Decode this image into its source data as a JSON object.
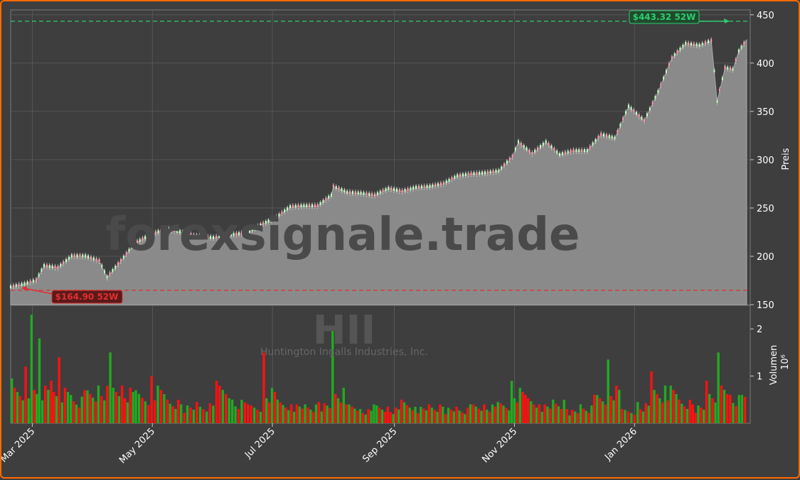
{
  "chart_data": {
    "type": "candlestick",
    "ticker": "HII",
    "company": "Huntington Ingalls Industries, Inc.",
    "watermark": "forexsignale.trade",
    "ylabel": "Preis",
    "volume_label": "Volumen",
    "volume_multiplier": "10⁶",
    "ylim": [
      150,
      455
    ],
    "vol_ylim": [
      0,
      2.5
    ],
    "yticks": [
      "150",
      "200",
      "250",
      "300",
      "350",
      "400",
      "450"
    ],
    "vol_yticks": [
      "1",
      "2"
    ],
    "x_start": "2025-02-18",
    "x_end": "2026-02-27",
    "xticks": [
      {
        "date": "2025-03-01",
        "label": "Mar 2025"
      },
      {
        "date": "2025-05-01",
        "label": "May 2025"
      },
      {
        "date": "2025-07-01",
        "label": "Jul 2025"
      },
      {
        "date": "2025-09-01",
        "label": "Sep 2025"
      },
      {
        "date": "2025-11-01",
        "label": "Nov 2025"
      },
      {
        "date": "2026-01-01",
        "label": "Jan 2026"
      }
    ],
    "high_52w": {
      "value": 443.32,
      "label": "$443.32 52W",
      "color": "#2ecc71"
    },
    "low_52w": {
      "value": 164.9,
      "label": "$164.90 52W",
      "color": "#e03030"
    },
    "colors": {
      "up": "#22aa22",
      "down": "#ff1111",
      "area": "#8a8a8a",
      "grid": "#5a5a5a"
    },
    "price_series": [
      [
        "2025-02-18",
        168
      ],
      [
        "2025-02-25",
        171
      ],
      [
        "2025-03-03",
        175
      ],
      [
        "2025-03-07",
        190
      ],
      [
        "2025-03-14",
        188
      ],
      [
        "2025-03-21",
        200
      ],
      [
        "2025-03-28",
        200
      ],
      [
        "2025-04-04",
        195
      ],
      [
        "2025-04-08",
        178
      ],
      [
        "2025-04-15",
        195
      ],
      [
        "2025-04-22",
        213
      ],
      [
        "2025-04-30",
        222
      ],
      [
        "2025-05-08",
        228
      ],
      [
        "2025-05-15",
        225
      ],
      [
        "2025-05-22",
        221
      ],
      [
        "2025-06-01",
        219
      ],
      [
        "2025-06-10",
        222
      ],
      [
        "2025-06-18",
        224
      ],
      [
        "2025-06-25",
        232
      ],
      [
        "2025-07-03",
        240
      ],
      [
        "2025-07-10",
        251
      ],
      [
        "2025-07-17",
        252
      ],
      [
        "2025-07-24",
        252
      ],
      [
        "2025-07-31",
        263
      ],
      [
        "2025-08-01",
        272
      ],
      [
        "2025-08-08",
        266
      ],
      [
        "2025-08-15",
        265
      ],
      [
        "2025-08-22",
        263
      ],
      [
        "2025-08-29",
        270
      ],
      [
        "2025-09-05",
        267
      ],
      [
        "2025-09-12",
        271
      ],
      [
        "2025-09-19",
        272
      ],
      [
        "2025-09-26",
        275
      ],
      [
        "2025-10-03",
        283
      ],
      [
        "2025-10-10",
        285
      ],
      [
        "2025-10-17",
        286
      ],
      [
        "2025-10-24",
        288
      ],
      [
        "2025-10-31",
        303
      ],
      [
        "2025-11-03",
        318
      ],
      [
        "2025-11-10",
        306
      ],
      [
        "2025-11-17",
        318
      ],
      [
        "2025-11-24",
        305
      ],
      [
        "2025-12-01",
        309
      ],
      [
        "2025-12-08",
        309
      ],
      [
        "2025-12-15",
        326
      ],
      [
        "2025-12-22",
        322
      ],
      [
        "2025-12-29",
        355
      ],
      [
        "2026-01-06",
        340
      ],
      [
        "2026-01-13",
        370
      ],
      [
        "2026-01-20",
        405
      ],
      [
        "2026-01-27",
        420
      ],
      [
        "2026-02-03",
        418
      ],
      [
        "2026-02-09",
        423
      ],
      [
        "2026-02-12",
        360
      ],
      [
        "2026-02-16",
        395
      ],
      [
        "2026-02-20",
        393
      ],
      [
        "2026-02-23",
        412
      ],
      [
        "2026-02-27",
        424
      ]
    ],
    "volume_series": [
      [
        "2025-02-18",
        0.95,
        "up"
      ],
      [
        "2025-02-25",
        1.2,
        "down"
      ],
      [
        "2025-02-28",
        2.3,
        "up"
      ],
      [
        "2025-03-04",
        1.8,
        "up"
      ],
      [
        "2025-03-10",
        0.9,
        "down"
      ],
      [
        "2025-03-14",
        1.4,
        "down"
      ],
      [
        "2025-03-20",
        0.6,
        "up"
      ],
      [
        "2025-03-27",
        0.7,
        "down"
      ],
      [
        "2025-04-03",
        0.8,
        "up"
      ],
      [
        "2025-04-09",
        1.5,
        "up"
      ],
      [
        "2025-04-15",
        0.8,
        "down"
      ],
      [
        "2025-04-22",
        0.7,
        "up"
      ],
      [
        "2025-04-30",
        1.0,
        "down"
      ],
      [
        "2025-05-08",
        0.5,
        "down"
      ],
      [
        "2025-05-15",
        0.4,
        "up"
      ],
      [
        "2025-05-23",
        0.45,
        "down"
      ],
      [
        "2025-06-02",
        0.9,
        "down"
      ],
      [
        "2025-06-10",
        0.5,
        "up"
      ],
      [
        "2025-06-18",
        0.4,
        "down"
      ],
      [
        "2025-06-26",
        1.5,
        "down"
      ],
      [
        "2025-07-03",
        0.5,
        "up"
      ],
      [
        "2025-07-10",
        0.4,
        "down"
      ],
      [
        "2025-07-17",
        0.4,
        "up"
      ],
      [
        "2025-07-24",
        0.45,
        "down"
      ],
      [
        "2025-07-31",
        2.0,
        "up"
      ],
      [
        "2025-08-07",
        0.4,
        "down"
      ],
      [
        "2025-08-14",
        0.3,
        "up"
      ],
      [
        "2025-08-21",
        0.4,
        "up"
      ],
      [
        "2025-08-28",
        0.35,
        "down"
      ],
      [
        "2025-09-04",
        0.5,
        "down"
      ],
      [
        "2025-09-11",
        0.35,
        "up"
      ],
      [
        "2025-09-18",
        0.4,
        "down"
      ],
      [
        "2025-09-25",
        0.35,
        "up"
      ],
      [
        "2025-10-02",
        0.35,
        "down"
      ],
      [
        "2025-10-09",
        0.4,
        "up"
      ],
      [
        "2025-10-16",
        0.4,
        "down"
      ],
      [
        "2025-10-23",
        0.45,
        "up"
      ],
      [
        "2025-10-30",
        0.9,
        "up"
      ],
      [
        "2025-11-06",
        0.6,
        "down"
      ],
      [
        "2025-11-13",
        0.4,
        "down"
      ],
      [
        "2025-11-20",
        0.5,
        "up"
      ],
      [
        "2025-11-27",
        0.3,
        "down"
      ],
      [
        "2025-12-04",
        0.4,
        "up"
      ],
      [
        "2025-12-11",
        0.6,
        "down"
      ],
      [
        "2025-12-18",
        1.35,
        "up"
      ],
      [
        "2025-12-25",
        0.3,
        "down"
      ],
      [
        "2026-01-02",
        0.45,
        "up"
      ],
      [
        "2026-01-09",
        1.1,
        "down"
      ],
      [
        "2026-01-16",
        0.8,
        "up"
      ],
      [
        "2026-01-23",
        0.5,
        "down"
      ],
      [
        "2026-01-30",
        0.4,
        "down"
      ],
      [
        "2026-02-06",
        0.9,
        "down"
      ],
      [
        "2026-02-12",
        1.5,
        "up"
      ],
      [
        "2026-02-18",
        0.6,
        "down"
      ],
      [
        "2026-02-24",
        0.6,
        "up"
      ]
    ]
  }
}
